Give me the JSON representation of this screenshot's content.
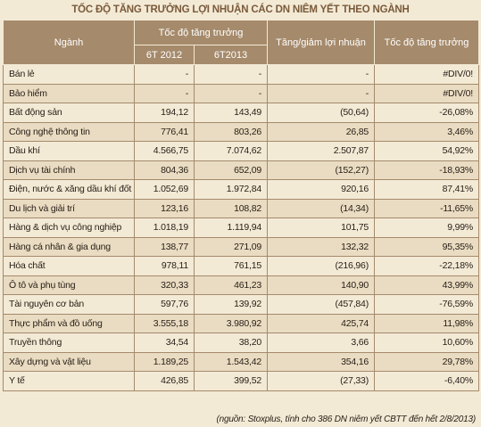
{
  "title": "TỐC ĐỘ TĂNG TRƯỞNG LỢI NHUẬN CÁC DN NIÊM YẾT THEO NGÀNH",
  "table": {
    "header": {
      "sector": "Ngành",
      "growth_group": "Tốc độ tăng trưởng",
      "y2012": "6T 2012",
      "y2013": "6T2013",
      "change": "Tăng/giảm lợi nhuận",
      "growth": "Tốc độ tăng trưởng"
    },
    "rows": [
      [
        "Bán lẻ",
        "-",
        "-",
        "-",
        "#DIV/0!"
      ],
      [
        "Bảo hiểm",
        "-",
        "-",
        "-",
        "#DIV/0!"
      ],
      [
        "Bất động sản",
        "194,12",
        "143,49",
        "(50,64)",
        "-26,08%"
      ],
      [
        "Công nghệ thông tin",
        "776,41",
        "803,26",
        "26,85",
        "3,46%"
      ],
      [
        "Dầu khí",
        "4.566,75",
        "7.074,62",
        "2.507,87",
        "54,92%"
      ],
      [
        "Dịch vụ tài chính",
        "804,36",
        "652,09",
        "(152,27)",
        "-18,93%"
      ],
      [
        "Điện, nước & xăng dầu khí đốt",
        "1.052,69",
        "1.972,84",
        "920,16",
        "87,41%"
      ],
      [
        "Du lịch và giải trí",
        "123,16",
        "108,82",
        "(14,34)",
        "-11,65%"
      ],
      [
        "Hàng & dịch vụ công nghiệp",
        "1.018,19",
        "1.119,94",
        "101,75",
        "9,99%"
      ],
      [
        "Hàng cá nhân & gia dụng",
        "138,77",
        "271,09",
        "132,32",
        "95,35%"
      ],
      [
        "Hóa chất",
        "978,11",
        "761,15",
        "(216,96)",
        "-22,18%"
      ],
      [
        "Ô tô và phụ tùng",
        "320,33",
        "461,23",
        "140,90",
        "43,99%"
      ],
      [
        "Tài nguyên cơ bản",
        "597,76",
        "139,92",
        "(457,84)",
        "-76,59%"
      ],
      [
        "Thực phẩm và đồ uống",
        "3.555,18",
        "3.980,92",
        "425,74",
        "11,98%"
      ],
      [
        "Truyền thông",
        "34,54",
        "38,20",
        "3,66",
        "10,60%"
      ],
      [
        "Xây dựng và vật liệu",
        "1.189,25",
        "1.543,42",
        "354,16",
        "29,78%"
      ],
      [
        "Y tế",
        "426,85",
        "399,52",
        "(27,33)",
        "-6,40%"
      ]
    ]
  },
  "footnote": "(nguồn: Stoxplus, tính cho 386 DN niêm yết CBTT đến hết 2/8/2013)"
}
